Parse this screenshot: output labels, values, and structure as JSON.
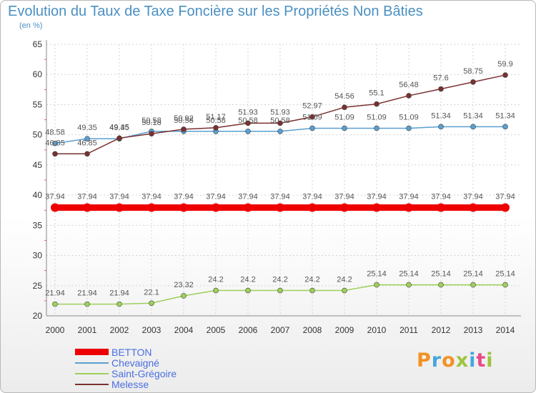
{
  "title": "Evolution du Taux de Taxe Foncière sur les Propriétés Non Bâties",
  "unit_label": "(en %)",
  "logo": {
    "text": "Proxiti",
    "colors": [
      "#f29222",
      "#46a5dc",
      "#f29222",
      "#9dc53c",
      "#46a5dc",
      "#e94a8a",
      "#9dc53c"
    ]
  },
  "chart_data": {
    "type": "line",
    "x": [
      2000,
      2001,
      2002,
      2003,
      2004,
      2005,
      2006,
      2007,
      2008,
      2009,
      2010,
      2011,
      2012,
      2013,
      2014
    ],
    "ylim": [
      20,
      65
    ],
    "yticks": [
      20,
      25,
      30,
      35,
      40,
      45,
      50,
      55,
      60,
      65
    ],
    "legend_position": "bottom-left",
    "series": [
      {
        "name": "BETTON",
        "color": "#ee0000",
        "values": [
          37.94,
          37.94,
          37.94,
          37.94,
          37.94,
          37.94,
          37.94,
          37.94,
          37.94,
          37.94,
          37.94,
          37.94,
          37.94,
          37.94,
          37.94
        ],
        "labels": [
          "37.94",
          "37.94",
          "37.94",
          "37.94",
          "37.94",
          "37.94",
          "37.94",
          "37.94",
          "37.94",
          "37.94",
          "37.94",
          "37.94",
          "37.94",
          "37.94",
          "37.94"
        ]
      },
      {
        "name": "Chevaigné",
        "color": "#5a9fd0",
        "values": [
          48.58,
          49.35,
          49.35,
          50.58,
          50.58,
          50.58,
          50.58,
          50.58,
          51.09,
          51.09,
          51.09,
          51.09,
          51.34,
          51.34,
          51.34
        ],
        "labels": [
          "48.58",
          "49.35",
          "49.35",
          "50.58",
          "50.58",
          "50.58",
          "50.58",
          "50.58",
          "51.09",
          "51.09",
          "51.09",
          "51.09",
          "51.34",
          "51.34",
          "51.34"
        ]
      },
      {
        "name": "Saint-Grégoire",
        "color": "#9dd05a",
        "values": [
          21.94,
          21.94,
          21.94,
          22.1,
          23.32,
          24.2,
          24.2,
          24.2,
          24.2,
          24.2,
          25.14,
          25.14,
          25.14,
          25.14,
          25.14
        ],
        "labels": [
          "21.94",
          "21.94",
          "21.94",
          "22.1",
          "23.32",
          "24.2",
          "24.2",
          "24.2",
          "24.2",
          "24.2",
          "25.14",
          "25.14",
          "25.14",
          "25.14",
          "25.14"
        ]
      },
      {
        "name": "Melesse",
        "color": "#7a3030",
        "values": [
          46.85,
          46.85,
          49.45,
          50.18,
          50.92,
          51.17,
          51.93,
          51.93,
          52.97,
          54.56,
          55.1,
          56.48,
          57.6,
          58.75,
          59.9
        ],
        "labels": [
          "46.85",
          "46.85",
          "49.45",
          "50.18",
          "50.92",
          "51.17",
          "51.93",
          "51.93",
          "52.97",
          "54.56",
          "55.1",
          "56.48",
          "57.6",
          "58.75",
          "59.9"
        ]
      }
    ]
  }
}
